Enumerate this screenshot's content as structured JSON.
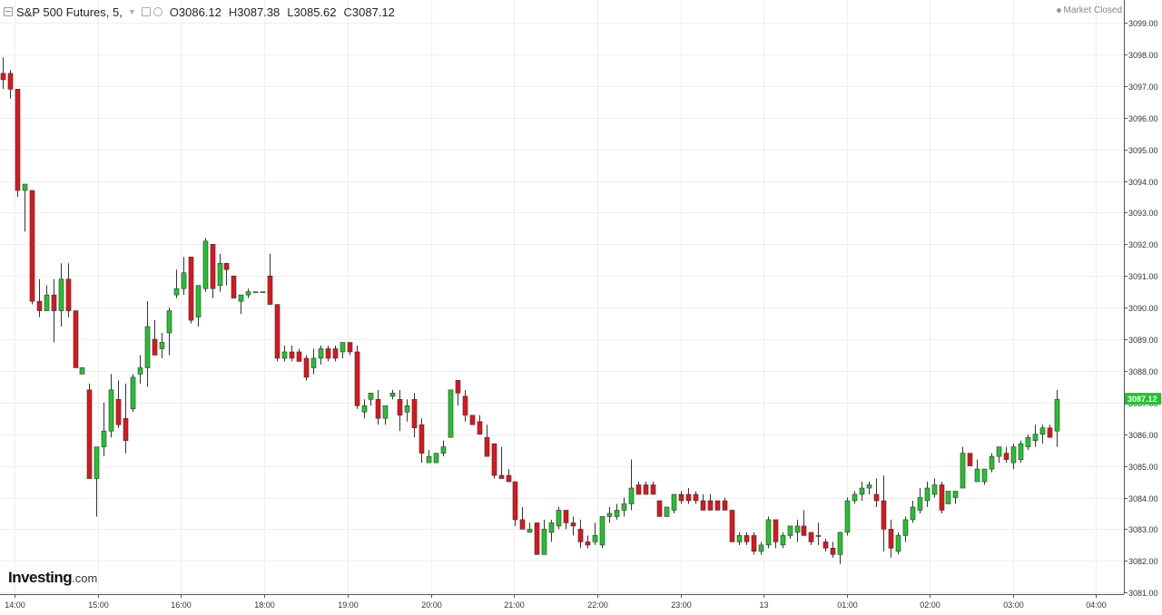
{
  "header": {
    "title": "S&P 500 Futures, 5,",
    "open_label": "O",
    "open": "3086.12",
    "high_label": "H",
    "high": "3087.38",
    "low_label": "L",
    "low": "3085.62",
    "close_label": "C",
    "close": "3087.12"
  },
  "status": "Market Closed",
  "logo": {
    "brand": "Investing",
    "suffix": ".com"
  },
  "colors": {
    "up": "#22c32e",
    "down": "#e0141c",
    "grid": "#eeeeee",
    "last_price": "#22c32e"
  },
  "chart_data": {
    "type": "candlestick",
    "ylim": [
      3081,
      3099.3
    ],
    "y_ticks": [
      "3081.00",
      "3082.00",
      "3083.00",
      "3084.00",
      "3085.00",
      "3086.00",
      "3087.00",
      "3088.00",
      "3089.00",
      "3090.00",
      "3091.00",
      "3092.00",
      "3093.00",
      "3094.00",
      "3095.00",
      "3096.00",
      "3097.00",
      "3098.00",
      "3099.00"
    ],
    "x_ticks": [
      "14:00",
      "15:00",
      "16:00",
      "18:00",
      "19:00",
      "20:00",
      "21:00",
      "22:00",
      "23:00",
      "13",
      "01:00",
      "02:00",
      "03:00",
      "04:00"
    ],
    "last_price": "3087.12",
    "candles": [
      [
        3097.4,
        3097.9,
        3096.9,
        3097.2
      ],
      [
        3097.4,
        3097.5,
        3096.6,
        3096.9
      ],
      [
        3096.9,
        3096.9,
        3093.5,
        3093.7
      ],
      [
        3093.7,
        3093.9,
        3092.4,
        3093.9
      ],
      [
        3093.7,
        3093.7,
        3090.1,
        3090.2
      ],
      [
        3090.2,
        3090.9,
        3089.7,
        3089.9
      ],
      [
        3089.9,
        3090.7,
        3089.9,
        3090.4
      ],
      [
        3090.4,
        3090.9,
        3088.9,
        3089.9
      ],
      [
        3089.9,
        3091.4,
        3089.4,
        3090.9
      ],
      [
        3090.9,
        3091.4,
        3089.7,
        3089.9
      ],
      [
        3089.9,
        3089.9,
        3088.1,
        3088.1
      ],
      [
        3087.9,
        3088.0,
        3087.9,
        3088.1
      ],
      [
        3087.4,
        3087.6,
        3084.6,
        3084.6
      ],
      [
        3084.6,
        3085.5,
        3083.4,
        3085.6
      ],
      [
        3085.6,
        3087.0,
        3085.3,
        3086.1
      ],
      [
        3086.1,
        3087.9,
        3085.9,
        3087.4
      ],
      [
        3087.1,
        3087.7,
        3086.2,
        3086.3
      ],
      [
        3086.5,
        3087.6,
        3085.4,
        3085.8
      ],
      [
        3086.8,
        3087.9,
        3086.7,
        3087.8
      ],
      [
        3087.9,
        3088.5,
        3087.6,
        3088.1
      ],
      [
        3088.1,
        3090.2,
        3087.5,
        3089.4
      ],
      [
        3089.0,
        3089.6,
        3088.5,
        3088.5
      ],
      [
        3088.7,
        3089.2,
        3088.4,
        3088.9
      ],
      [
        3089.2,
        3090.0,
        3088.5,
        3089.9
      ],
      [
        3090.4,
        3091.2,
        3090.3,
        3090.6
      ],
      [
        3090.6,
        3091.6,
        3090.4,
        3091.1
      ],
      [
        3091.6,
        3091.6,
        3089.5,
        3089.6
      ],
      [
        3089.7,
        3090.7,
        3089.4,
        3090.7
      ],
      [
        3090.6,
        3092.2,
        3090.5,
        3092.1
      ],
      [
        3092.0,
        3092.0,
        3090.3,
        3090.6
      ],
      [
        3090.7,
        3091.7,
        3090.5,
        3091.4
      ],
      [
        3091.4,
        3091.4,
        3090.7,
        3091.2
      ],
      [
        3091.0,
        3091.0,
        3090.3,
        3090.3
      ],
      [
        3090.2,
        3090.4,
        3089.8,
        3090.4
      ],
      [
        3090.4,
        3090.6,
        3090.3,
        3090.5
      ],
      [
        3090.5,
        3090.5,
        3090.5,
        3090.5
      ],
      [
        3090.5,
        3090.5,
        3090.5,
        3090.5
      ],
      [
        3091.0,
        3091.7,
        3090.1,
        3090.1
      ],
      [
        3090.1,
        3090.1,
        3088.3,
        3088.4
      ],
      [
        3088.4,
        3088.8,
        3088.3,
        3088.6
      ],
      [
        3088.6,
        3088.8,
        3088.3,
        3088.4
      ],
      [
        3088.6,
        3088.7,
        3088.3,
        3088.3
      ],
      [
        3088.4,
        3088.5,
        3087.7,
        3087.8
      ],
      [
        3088.1,
        3088.7,
        3087.9,
        3088.4
      ],
      [
        3088.4,
        3088.8,
        3088.2,
        3088.7
      ],
      [
        3088.7,
        3088.8,
        3088.3,
        3088.4
      ],
      [
        3088.7,
        3088.8,
        3088.3,
        3088.4
      ],
      [
        3088.6,
        3088.9,
        3088.4,
        3088.9
      ],
      [
        3088.9,
        3088.9,
        3088.5,
        3088.6
      ],
      [
        3088.6,
        3088.8,
        3086.8,
        3086.9
      ],
      [
        3086.7,
        3087.1,
        3086.5,
        3086.9
      ],
      [
        3087.1,
        3087.2,
        3086.9,
        3087.3
      ],
      [
        3087.1,
        3087.4,
        3086.3,
        3086.5
      ],
      [
        3086.5,
        3086.9,
        3086.3,
        3086.9
      ],
      [
        3087.2,
        3087.4,
        3087.1,
        3087.3
      ],
      [
        3087.1,
        3087.4,
        3086.1,
        3086.6
      ],
      [
        3086.7,
        3087.1,
        3086.4,
        3086.9
      ],
      [
        3087.1,
        3087.3,
        3085.9,
        3086.2
      ],
      [
        3086.3,
        3086.5,
        3085.1,
        3085.4
      ],
      [
        3085.1,
        3085.5,
        3085.1,
        3085.3
      ],
      [
        3085.1,
        3085.3,
        3085.1,
        3085.4
      ],
      [
        3085.4,
        3085.8,
        3085.3,
        3085.6
      ],
      [
        3085.9,
        3087.4,
        3085.9,
        3087.4
      ],
      [
        3087.7,
        3087.7,
        3086.9,
        3087.3
      ],
      [
        3087.2,
        3087.4,
        3086.4,
        3086.6
      ],
      [
        3086.6,
        3086.6,
        3086.3,
        3086.3
      ],
      [
        3086.4,
        3086.6,
        3086.1,
        3086.0
      ],
      [
        3085.9,
        3086.3,
        3085.3,
        3085.3
      ],
      [
        3085.7,
        3085.7,
        3084.6,
        3084.7
      ],
      [
        3084.7,
        3085.6,
        3084.6,
        3084.6
      ],
      [
        3084.7,
        3084.9,
        3084.5,
        3084.5
      ],
      [
        3084.5,
        3084.5,
        3083.1,
        3083.3
      ],
      [
        3083.3,
        3083.7,
        3083.1,
        3083.0
      ],
      [
        3082.9,
        3083.2,
        3082.9,
        3083.0
      ],
      [
        3083.2,
        3083.2,
        3082.2,
        3082.2
      ],
      [
        3082.2,
        3083.3,
        3082.2,
        3083.0
      ],
      [
        3082.9,
        3083.3,
        3082.6,
        3083.2
      ],
      [
        3083.1,
        3083.7,
        3083.0,
        3083.6
      ],
      [
        3083.6,
        3083.6,
        3083.0,
        3083.2
      ],
      [
        3083.2,
        3083.4,
        3082.8,
        3083.1
      ],
      [
        3083.0,
        3083.3,
        3082.4,
        3082.6
      ],
      [
        3082.6,
        3082.8,
        3082.4,
        3082.5
      ],
      [
        3082.6,
        3083.2,
        3082.5,
        3082.8
      ],
      [
        3082.5,
        3083.4,
        3082.4,
        3083.4
      ],
      [
        3083.4,
        3083.7,
        3083.2,
        3083.5
      ],
      [
        3083.4,
        3083.8,
        3083.3,
        3083.6
      ],
      [
        3083.6,
        3084.0,
        3083.4,
        3083.8
      ],
      [
        3083.8,
        3085.2,
        3083.6,
        3084.3
      ],
      [
        3084.4,
        3084.5,
        3084.1,
        3084.1
      ],
      [
        3084.4,
        3084.5,
        3084.1,
        3084.1
      ],
      [
        3084.4,
        3084.5,
        3084.1,
        3084.1
      ],
      [
        3083.9,
        3083.9,
        3083.4,
        3083.4
      ],
      [
        3083.4,
        3083.7,
        3083.4,
        3083.7
      ],
      [
        3083.6,
        3084.1,
        3083.5,
        3084.1
      ],
      [
        3084.1,
        3084.2,
        3083.8,
        3083.9
      ],
      [
        3084.1,
        3084.3,
        3083.8,
        3083.9
      ],
      [
        3084.1,
        3084.2,
        3083.8,
        3083.9
      ],
      [
        3083.9,
        3084.1,
        3083.6,
        3083.6
      ],
      [
        3083.9,
        3084.1,
        3083.6,
        3083.6
      ],
      [
        3083.9,
        3083.9,
        3083.6,
        3083.6
      ],
      [
        3083.9,
        3084.0,
        3083.6,
        3083.6
      ],
      [
        3083.6,
        3083.6,
        3082.6,
        3082.6
      ],
      [
        3082.6,
        3082.9,
        3082.5,
        3082.8
      ],
      [
        3082.8,
        3082.9,
        3082.5,
        3082.6
      ],
      [
        3082.8,
        3082.9,
        3082.2,
        3082.3
      ],
      [
        3082.3,
        3082.6,
        3082.2,
        3082.5
      ],
      [
        3082.5,
        3083.4,
        3082.4,
        3083.3
      ],
      [
        3083.3,
        3083.3,
        3082.4,
        3082.6
      ],
      [
        3082.5,
        3082.9,
        3082.4,
        3082.8
      ],
      [
        3082.8,
        3083.1,
        3082.7,
        3083.1
      ],
      [
        3082.9,
        3083.3,
        3082.6,
        3083.1
      ],
      [
        3083.1,
        3083.6,
        3082.8,
        3082.8
      ],
      [
        3082.9,
        3082.9,
        3082.5,
        3082.6
      ],
      [
        3082.8,
        3083.2,
        3082.5,
        3082.8
      ],
      [
        3082.6,
        3082.7,
        3082.3,
        3082.4
      ],
      [
        3082.4,
        3082.6,
        3082.1,
        3082.2
      ],
      [
        3082.2,
        3082.9,
        3081.9,
        3082.9
      ],
      [
        3082.9,
        3084.0,
        3082.8,
        3083.9
      ],
      [
        3083.9,
        3084.2,
        3083.8,
        3084.1
      ],
      [
        3084.1,
        3084.5,
        3083.9,
        3084.3
      ],
      [
        3084.3,
        3084.5,
        3084.1,
        3084.4
      ],
      [
        3084.1,
        3084.6,
        3083.7,
        3083.9
      ],
      [
        3083.9,
        3084.7,
        3082.3,
        3083.0
      ],
      [
        3083.0,
        3083.3,
        3082.1,
        3082.4
      ],
      [
        3082.3,
        3082.9,
        3082.2,
        3082.8
      ],
      [
        3082.8,
        3083.4,
        3082.6,
        3083.3
      ],
      [
        3083.3,
        3083.9,
        3083.2,
        3083.7
      ],
      [
        3083.6,
        3084.3,
        3083.5,
        3084.0
      ],
      [
        3083.9,
        3084.5,
        3083.7,
        3084.3
      ],
      [
        3084.1,
        3084.6,
        3084.0,
        3084.4
      ],
      [
        3084.4,
        3084.5,
        3083.5,
        3083.6
      ],
      [
        3083.8,
        3084.2,
        3083.8,
        3084.2
      ],
      [
        3084.0,
        3084.2,
        3083.8,
        3084.2
      ],
      [
        3084.3,
        3085.6,
        3084.3,
        3085.4
      ],
      [
        3085.4,
        3085.4,
        3085.0,
        3085.0
      ],
      [
        3084.5,
        3085.2,
        3084.5,
        3084.9
      ],
      [
        3084.5,
        3084.9,
        3084.4,
        3084.9
      ],
      [
        3084.9,
        3085.4,
        3084.8,
        3085.3
      ],
      [
        3085.3,
        3085.6,
        3085.1,
        3085.6
      ],
      [
        3085.4,
        3085.6,
        3085.1,
        3085.2
      ],
      [
        3085.1,
        3085.7,
        3084.9,
        3085.6
      ],
      [
        3085.2,
        3085.8,
        3085.1,
        3085.7
      ],
      [
        3085.6,
        3086.0,
        3085.5,
        3085.9
      ],
      [
        3085.8,
        3086.3,
        3085.6,
        3086.0
      ],
      [
        3086.0,
        3086.3,
        3085.7,
        3086.2
      ],
      [
        3086.2,
        3086.3,
        3085.9,
        3085.9
      ],
      [
        3086.1,
        3087.4,
        3085.6,
        3087.1
      ]
    ]
  }
}
